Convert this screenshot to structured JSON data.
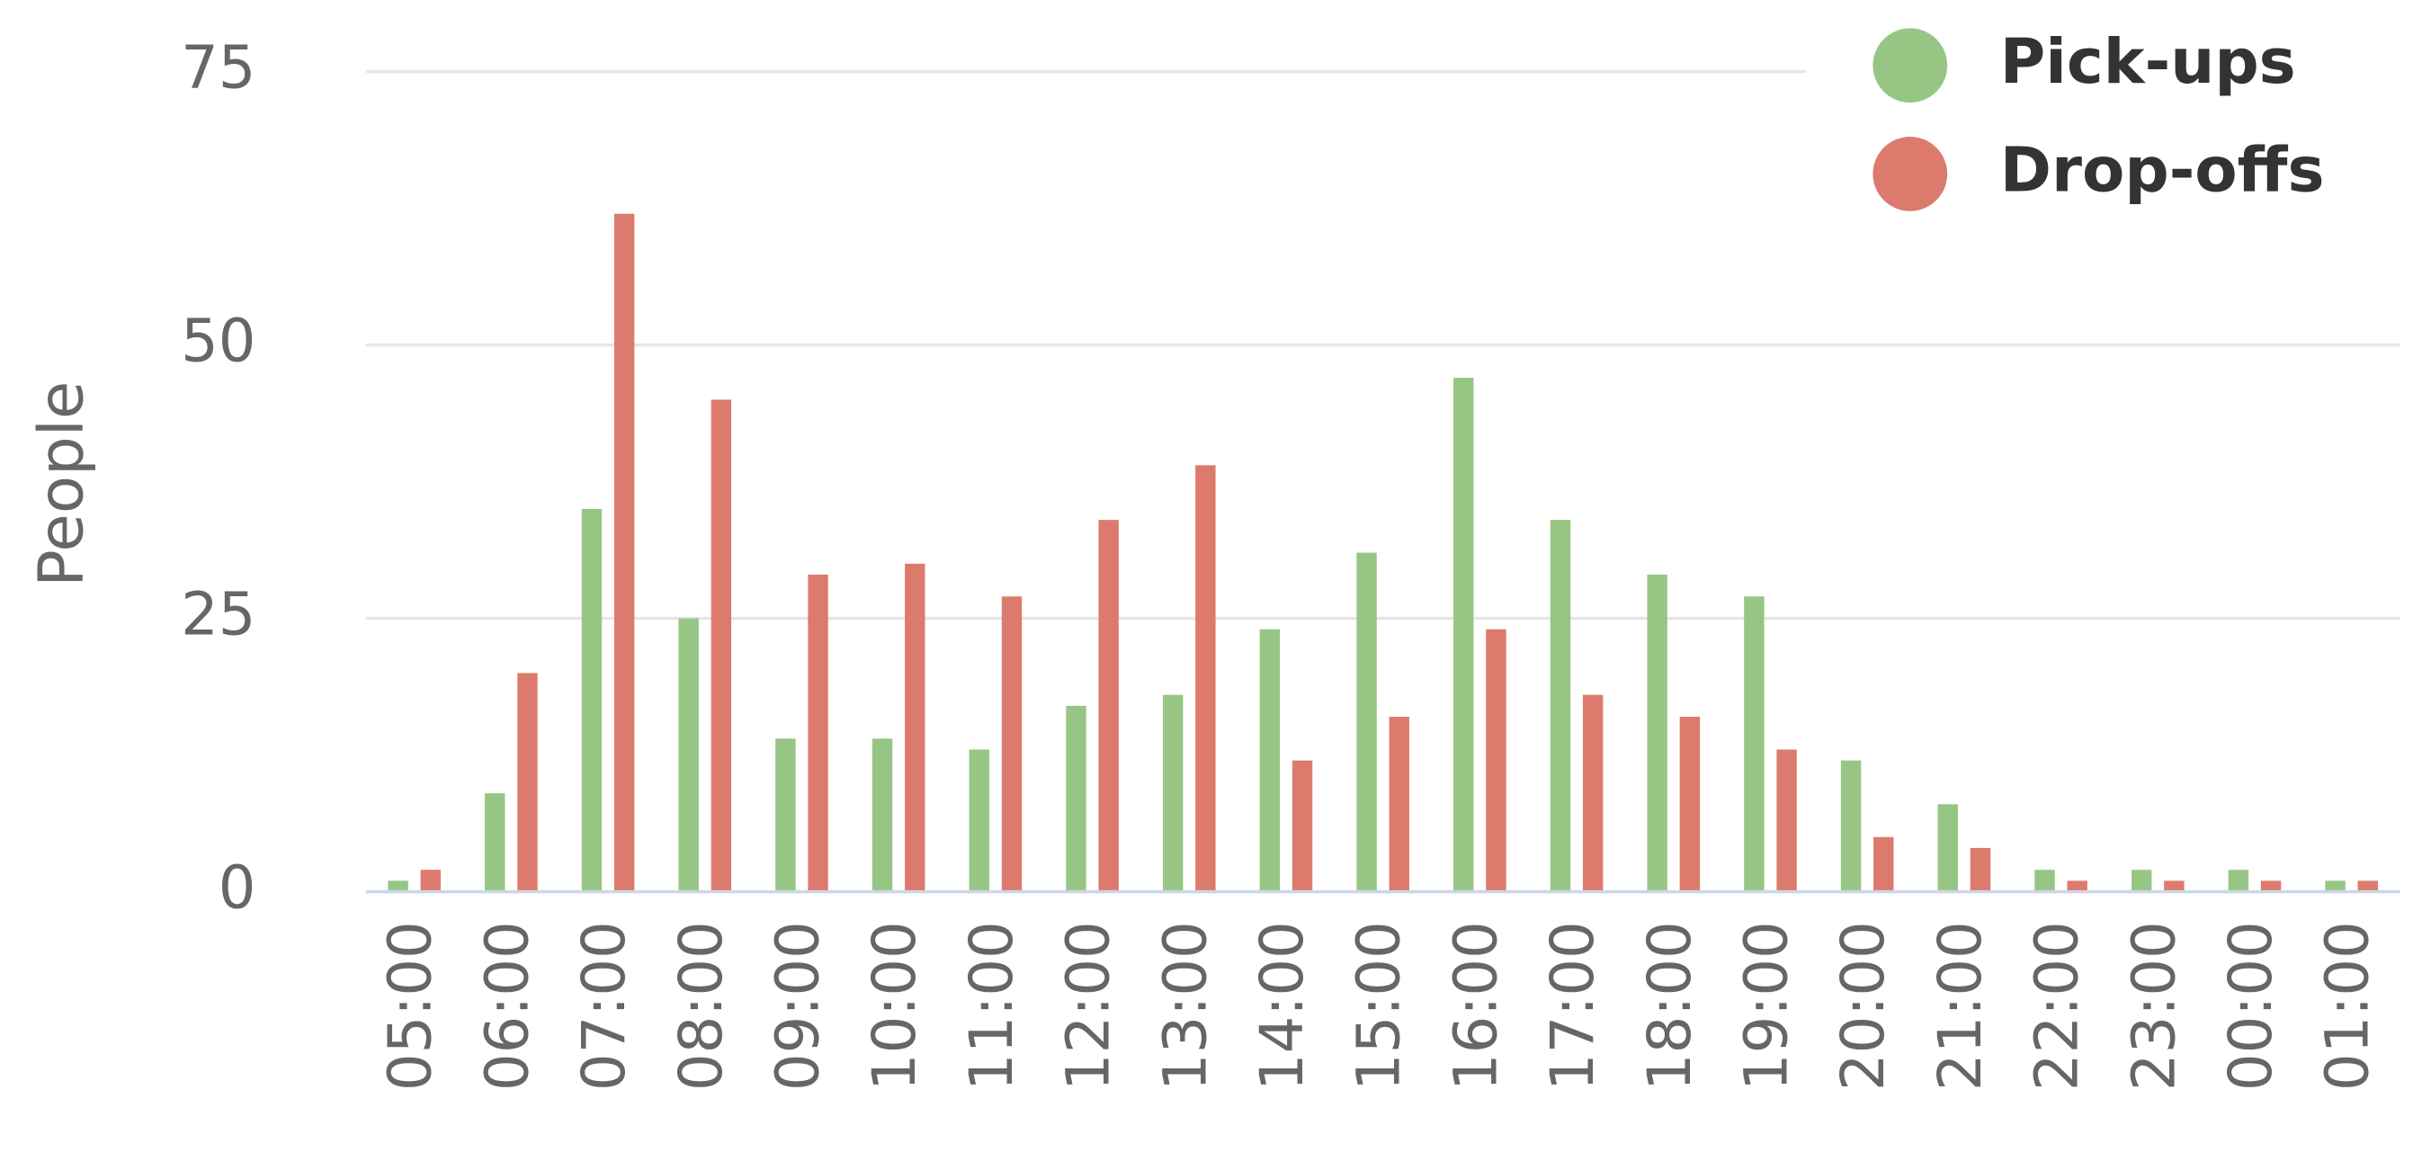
{
  "chart_data": {
    "type": "bar",
    "categories": [
      "05:00",
      "06:00",
      "07:00",
      "08:00",
      "09:00",
      "10:00",
      "11:00",
      "12:00",
      "13:00",
      "14:00",
      "15:00",
      "16:00",
      "17:00",
      "18:00",
      "19:00",
      "20:00",
      "21:00",
      "22:00",
      "23:00",
      "00:00",
      "01:00"
    ],
    "series": [
      {
        "name": "Pick-ups",
        "color": "#97c684",
        "values": [
          1,
          9,
          35,
          25,
          14,
          14,
          13,
          17,
          18,
          24,
          31,
          47,
          34,
          29,
          27,
          12,
          8,
          2,
          2,
          2,
          1
        ]
      },
      {
        "name": "Drop-offs",
        "color": "#dc7b6d",
        "values": [
          2,
          20,
          62,
          45,
          29,
          30,
          27,
          34,
          39,
          12,
          16,
          24,
          18,
          16,
          13,
          5,
          4,
          1,
          1,
          1,
          1
        ]
      }
    ],
    "y_label": "People",
    "ylim": [
      0,
      75
    ],
    "yticks": [
      0,
      25,
      50,
      75
    ],
    "grid": true,
    "legend": "top-right"
  }
}
